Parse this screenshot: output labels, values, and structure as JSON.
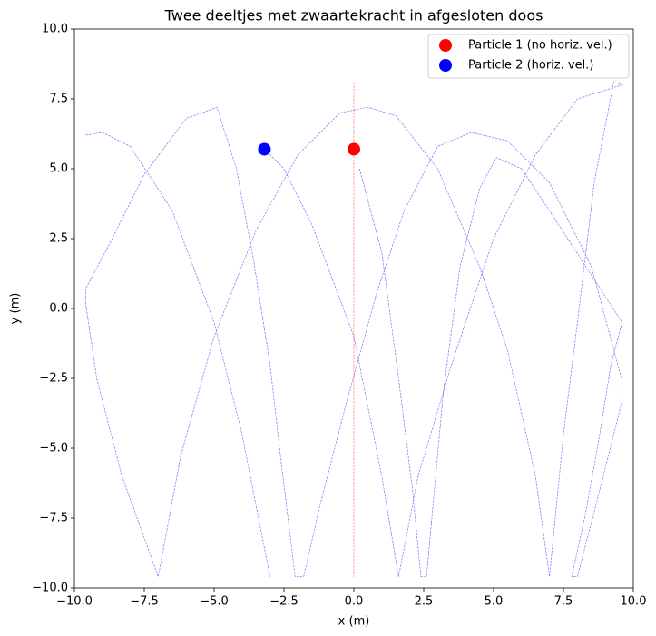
{
  "chart_data": {
    "type": "scatter",
    "title": "Twee deeltjes met zwaartekracht in afgesloten doos",
    "x_label": "x (m)",
    "y_label": "y (m)",
    "xlim": [
      -10,
      10
    ],
    "ylim": [
      -10,
      10
    ],
    "xticks": [
      {
        "value": -10,
        "label": "−10.0"
      },
      {
        "value": -7.5,
        "label": "−7.5"
      },
      {
        "value": -5,
        "label": "−5.0"
      },
      {
        "value": -2.5,
        "label": "−2.5"
      },
      {
        "value": 0,
        "label": "0.0"
      },
      2.5,
      {
        "value": 5,
        "label": "5.0"
      },
      7.5,
      {
        "value": 10,
        "label": "10.0"
      }
    ],
    "yticks": [
      {
        "value": -10,
        "label": "−10.0"
      },
      {
        "value": -7.5,
        "label": "−7.5"
      },
      {
        "value": -5,
        "label": "−5.0"
      },
      {
        "value": -2.5,
        "label": "−2.5"
      },
      {
        "value": 0,
        "label": "0.0"
      },
      2.5,
      {
        "value": 5,
        "label": "5.0"
      },
      7.5,
      {
        "value": 10,
        "label": "10.0"
      }
    ],
    "legend": "upper right",
    "trails": [
      {
        "color": "#ff0000",
        "x": [
          0,
          0
        ],
        "y": [
          8.1,
          -9.6
        ]
      },
      {
        "color": "#0000ff",
        "x": [
          0.2,
          1.0,
          1.6,
          2.1,
          2.4,
          2.6,
          3.2,
          3.8,
          4.5,
          5.1,
          6.0,
          7.0,
          8.3,
          9.6,
          9.2,
          8.8,
          8.3,
          7.8,
          8.0,
          8.8,
          9.6,
          9.6,
          8.5,
          7.0,
          5.5,
          4.2,
          3.0,
          1.8,
          0.8,
          -0.3,
          -1.2,
          -1.8,
          -2.1,
          -2.6,
          -3.0,
          -3.6,
          -4.2,
          -4.9,
          -6.0,
          -7.5,
          -8.8,
          -9.6,
          -9.6,
          -9.2,
          -8.3,
          -7.0,
          -6.2,
          -5.0,
          -3.5,
          -2.0,
          -0.5,
          0.5,
          1.5,
          3.0,
          4.5,
          5.5,
          6.5,
          7.0,
          7.5,
          8.0,
          8.6,
          9.3,
          9.6,
          8.0,
          6.5,
          5.0,
          3.5,
          2.3,
          1.6,
          1.0,
          0.0,
          -1.5,
          -2.5,
          -3.2,
          null,
          -9.6,
          -9.0,
          -8.0,
          -6.5,
          -5.0,
          -4.0,
          -3.0
        ],
        "y": [
          5.0,
          2.0,
          -2.5,
          -6.5,
          -9.6,
          -9.6,
          -3.0,
          1.5,
          4.3,
          5.4,
          5.0,
          3.5,
          1.5,
          -0.5,
          -2.0,
          -4.5,
          -7.3,
          -9.6,
          -9.6,
          -6.5,
          -3.3,
          -2.6,
          1.5,
          4.5,
          6.0,
          6.3,
          5.8,
          3.5,
          0.5,
          -3.5,
          -7.0,
          -9.6,
          -9.6,
          -5.5,
          -2.0,
          1.8,
          5.0,
          7.2,
          6.8,
          4.8,
          2.2,
          0.7,
          0.2,
          -2.5,
          -6.0,
          -9.6,
          -5.3,
          -1.0,
          2.8,
          5.5,
          7.0,
          7.2,
          6.9,
          5.0,
          1.5,
          -1.5,
          -6.0,
          -9.6,
          -4.5,
          -0.5,
          4.5,
          8.1,
          8.0,
          7.5,
          5.5,
          2.5,
          -2.0,
          -6.0,
          -9.6,
          -6.0,
          -1.0,
          3.0,
          5.0,
          5.7,
          null,
          6.2,
          6.3,
          5.8,
          3.5,
          -0.5,
          -4.5,
          -9.6
        ]
      }
    ],
    "series": [
      {
        "name": "Particle 1 (no horiz. vel.)",
        "color": "#ff0000",
        "x": [
          0
        ],
        "y": [
          5.7
        ]
      },
      {
        "name": "Particle 2 (horiz. vel.)",
        "color": "#0000ff",
        "x": [
          -3.2
        ],
        "y": [
          5.7
        ]
      }
    ]
  }
}
